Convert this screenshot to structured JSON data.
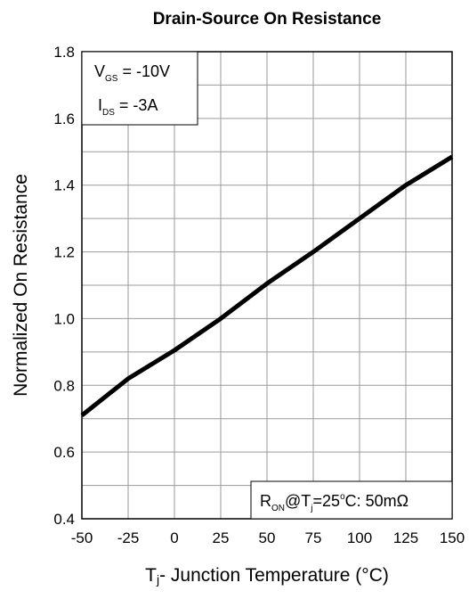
{
  "chart_data": {
    "type": "line",
    "title": "Drain-Source On Resistance",
    "xlabel": {
      "main": "T",
      "sub": "j",
      "rest": "- Junction Temperature (°C)"
    },
    "ylabel": "Normalized On Resistance",
    "xlim": [
      -50,
      150
    ],
    "ylim": [
      0.4,
      1.8
    ],
    "x_ticks": [
      "-50",
      "-25",
      "0",
      "25",
      "50",
      "75",
      "100",
      "125",
      "150"
    ],
    "y_ticks": [
      "0.4",
      "0.6",
      "0.8",
      "1.0",
      "1.2",
      "1.4",
      "1.6",
      "1.8"
    ],
    "grid": true,
    "series": [
      {
        "x": [
          -50,
          -25,
          0,
          25,
          50,
          75,
          100,
          125,
          150
        ],
        "y": [
          0.71,
          0.82,
          0.905,
          1.0,
          1.105,
          1.2,
          1.3,
          1.4,
          1.485
        ],
        "color": "#000000"
      }
    ],
    "annotations": {
      "vgs": {
        "main": "V",
        "sub": "GS",
        "value": " = -10V"
      },
      "ids": {
        "main": "I",
        "sub": "DS",
        "value": " = -3A"
      },
      "ron": {
        "main": "R",
        "sub": "ON",
        "mid": "@T",
        "sub2": "j",
        "tail": "=25",
        "sup": "o",
        "end": "C: 50mΩ"
      }
    }
  }
}
